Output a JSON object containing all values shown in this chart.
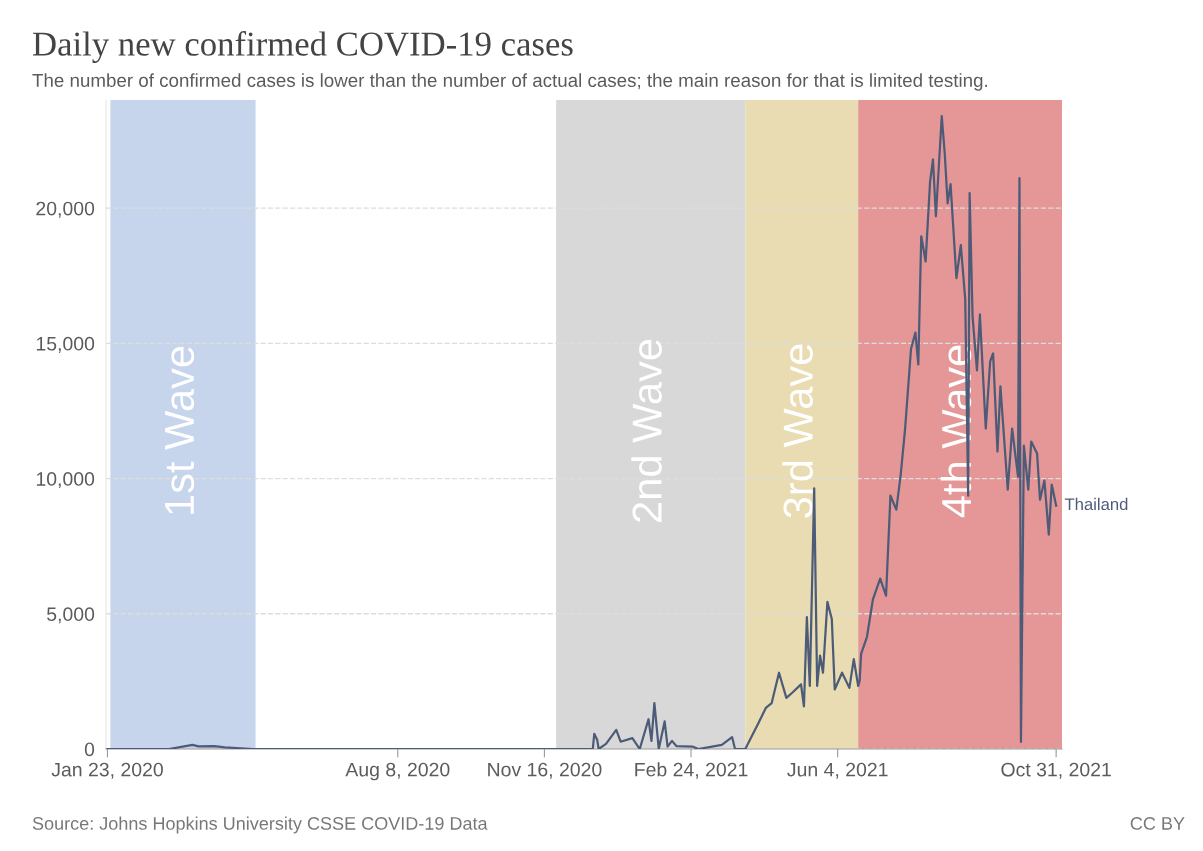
{
  "chart_data": {
    "type": "line",
    "title": "Daily new confirmed COVID-19 cases",
    "subtitle": "The number of confirmed cases is lower than the number of actual cases; the main reason for that is limited testing.",
    "annotations": [
      "Source: Johns Hopkins University CSSE COVID-19 Data",
      "CC BY"
    ],
    "x": [
      "2020-01-23",
      "2020-03-05",
      "2020-03-21",
      "2020-03-25",
      "2020-04-05",
      "2020-04-12",
      "2020-05-01",
      "2020-06-15",
      "2020-09-01",
      "2020-11-20",
      "2020-12-19",
      "2020-12-20",
      "2020-12-22",
      "2020-12-23",
      "2020-12-28",
      "2021-01-04",
      "2021-01-07",
      "2021-01-15",
      "2021-01-20",
      "2021-01-26",
      "2021-01-28",
      "2021-01-30",
      "2021-02-02",
      "2021-02-06",
      "2021-02-08",
      "2021-02-11",
      "2021-02-14",
      "2021-02-25",
      "2021-03-01",
      "2021-03-17",
      "2021-03-24",
      "2021-03-26",
      "2021-04-02",
      "2021-04-11",
      "2021-04-16",
      "2021-04-20",
      "2021-04-25",
      "2021-04-30",
      "2021-05-04",
      "2021-05-10",
      "2021-05-12",
      "2021-05-14",
      "2021-05-16",
      "2021-05-19",
      "2021-05-21",
      "2021-05-23",
      "2021-05-25",
      "2021-05-28",
      "2021-05-31",
      "2021-06-02",
      "2021-06-07",
      "2021-06-12",
      "2021-06-15",
      "2021-06-18",
      "2021-06-19",
      "2021-06-20",
      "2021-06-24",
      "2021-06-28",
      "2021-07-03",
      "2021-07-07",
      "2021-07-10",
      "2021-07-14",
      "2021-07-17",
      "2021-07-20",
      "2021-07-24",
      "2021-07-27",
      "2021-07-29",
      "2021-07-31",
      "2021-08-03",
      "2021-08-06",
      "2021-08-08",
      "2021-08-10",
      "2021-08-14",
      "2021-08-16",
      "2021-08-18",
      "2021-08-20",
      "2021-08-24",
      "2021-08-27",
      "2021-08-30",
      "2021-09-01",
      "2021-09-02",
      "2021-09-04",
      "2021-09-07",
      "2021-09-09",
      "2021-09-13",
      "2021-09-16",
      "2021-09-18",
      "2021-09-21",
      "2021-09-23",
      "2021-09-28",
      "2021-10-01",
      "2021-10-05",
      "2021-10-06",
      "2021-10-07",
      "2021-10-09",
      "2021-10-12",
      "2021-10-14",
      "2021-10-18",
      "2021-10-20",
      "2021-10-23",
      "2021-10-26",
      "2021-10-28",
      "2021-10-31"
    ],
    "series": [
      {
        "name": "Thailand",
        "color": "#4c5b78",
        "values": [
          0,
          0,
          150,
          100,
          110,
          60,
          0,
          0,
          0,
          0,
          0,
          560,
          340,
          0,
          190,
          710,
          270,
          400,
          0,
          1100,
          300,
          1700,
          0,
          1020,
          90,
          300,
          110,
          90,
          0,
          150,
          440,
          0,
          0,
          960,
          1520,
          1700,
          2820,
          1890,
          2080,
          2390,
          1580,
          4880,
          2330,
          9640,
          2330,
          3450,
          2820,
          5440,
          4810,
          2200,
          2820,
          2260,
          3320,
          2330,
          2520,
          3520,
          4150,
          5520,
          6300,
          5670,
          9370,
          8850,
          10150,
          11850,
          14780,
          15400,
          14220,
          18960,
          18030,
          20960,
          21800,
          19700,
          23400,
          22040,
          20180,
          20890,
          17410,
          18630,
          16630,
          9370,
          20560,
          16000,
          14000,
          16070,
          11850,
          14330,
          14630,
          11000,
          13410,
          9590,
          11850,
          10070,
          21110,
          260,
          11220,
          9590,
          11370,
          10930,
          9220,
          9930,
          7930,
          9780,
          9000
        ]
      }
    ],
    "xlim": [
      "2020-01-22",
      "2021-11-04"
    ],
    "xticks": [
      {
        "value": "2020-01-23",
        "label": "Jan 23, 2020"
      },
      {
        "value": "2020-08-08",
        "label": "Aug 8, 2020"
      },
      {
        "value": "2020-11-16",
        "label": "Nov 16, 2020"
      },
      {
        "value": "2021-02-24",
        "label": "Feb 24, 2021"
      },
      {
        "value": "2021-06-04",
        "label": "Jun 4, 2021"
      },
      {
        "value": "2021-10-31",
        "label": "Oct 31, 2021"
      }
    ],
    "ylim": [
      0,
      24000
    ],
    "yticks": [
      {
        "value": 0,
        "label": "0"
      },
      {
        "value": 5000,
        "label": "5,000"
      },
      {
        "value": 10000,
        "label": "10,000"
      },
      {
        "value": 15000,
        "label": "15,000"
      },
      {
        "value": 20000,
        "label": "20,000"
      }
    ],
    "bands": [
      {
        "axis": "x",
        "from": "2020-01-25",
        "to": "2020-05-03",
        "label": "1st Wave",
        "color": "#c6d4ec"
      },
      {
        "axis": "x",
        "from": "2020-11-24",
        "to": "2021-04-02",
        "label": "2nd Wave",
        "color": "#d8d8d8"
      },
      {
        "axis": "x",
        "from": "2021-04-02",
        "to": "2021-06-18",
        "label": "3rd Wave",
        "color": "#e9dcb2"
      },
      {
        "axis": "x",
        "from": "2021-06-18",
        "to": "2021-11-04",
        "label": "4th Wave",
        "color": "#e59797"
      }
    ],
    "grid": "y",
    "legend": false,
    "marker": "none",
    "line_style": "solid"
  }
}
